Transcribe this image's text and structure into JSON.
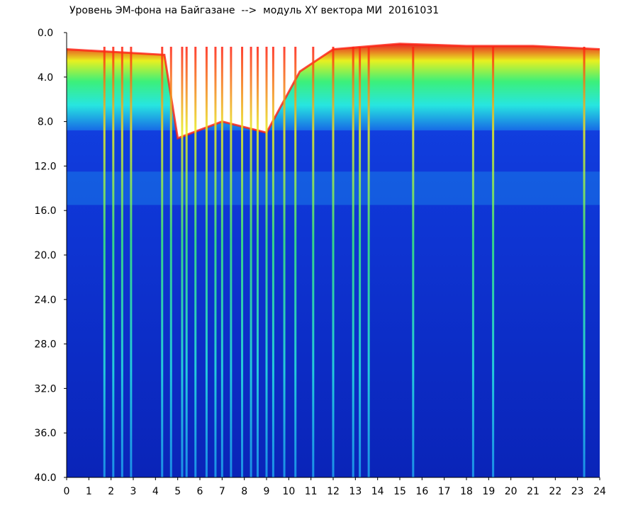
{
  "title": "Уровень ЭМ-фона на Байгазане  -->  модуль XY вектора МИ  20161031",
  "chart_data": {
    "type": "heatmap",
    "title": "Уровень ЭМ-фона на Байгазане  -->  модуль XY вектора МИ  20161031",
    "xlabel": "",
    "ylabel": "",
    "xlim": [
      0,
      24
    ],
    "ylim": [
      0,
      40
    ],
    "y_axis_inverted": true,
    "x_ticks": [
      "0",
      "1",
      "2",
      "3",
      "4",
      "5",
      "6",
      "7",
      "8",
      "9",
      "10",
      "11",
      "12",
      "13",
      "14",
      "15",
      "16",
      "17",
      "18",
      "19",
      "20",
      "21",
      "22",
      "23",
      "24"
    ],
    "y_ticks": [
      "0.0",
      "4.0",
      "8.0",
      "12.0",
      "16.0",
      "20.0",
      "24.0",
      "28.0",
      "32.0",
      "36.0",
      "40.0"
    ],
    "colormap": [
      "#0a1fb0",
      "#1244e8",
      "#1fa0f0",
      "#27e6e0",
      "#3cf07a",
      "#e8f020",
      "#ff2010"
    ],
    "noise_profile": [
      {
        "hour": 0.0,
        "top_y": 1.5,
        "level": "high"
      },
      {
        "hour": 4.4,
        "top_y": 2.0,
        "level": "high"
      },
      {
        "hour": 5.0,
        "top_y": 9.5,
        "level": "very high"
      },
      {
        "hour": 7.0,
        "top_y": 8.0,
        "level": "very high"
      },
      {
        "hour": 9.0,
        "top_y": 9.0,
        "level": "very high"
      },
      {
        "hour": 10.5,
        "top_y": 3.5,
        "level": "high"
      },
      {
        "hour": 12.0,
        "top_y": 1.5,
        "level": "high"
      },
      {
        "hour": 15.0,
        "top_y": 1.0,
        "level": "high"
      },
      {
        "hour": 18.0,
        "top_y": 1.2,
        "level": "high"
      },
      {
        "hour": 21.0,
        "top_y": 1.2,
        "level": "high"
      },
      {
        "hour": 24.0,
        "top_y": 1.5,
        "level": "high"
      }
    ],
    "noisy_band_bottom_y": 8.8,
    "secondary_band_y": [
      12.5,
      15.5
    ],
    "vertical_streaks_hours": [
      1.7,
      2.1,
      2.5,
      2.9,
      4.3,
      4.7,
      5.2,
      5.4,
      5.8,
      6.3,
      6.7,
      7.0,
      7.4,
      7.9,
      8.3,
      8.6,
      9.0,
      9.3,
      9.8,
      10.3,
      11.1,
      12.0,
      12.9,
      13.2,
      13.6,
      15.6,
      18.3,
      19.2,
      23.3
    ]
  }
}
